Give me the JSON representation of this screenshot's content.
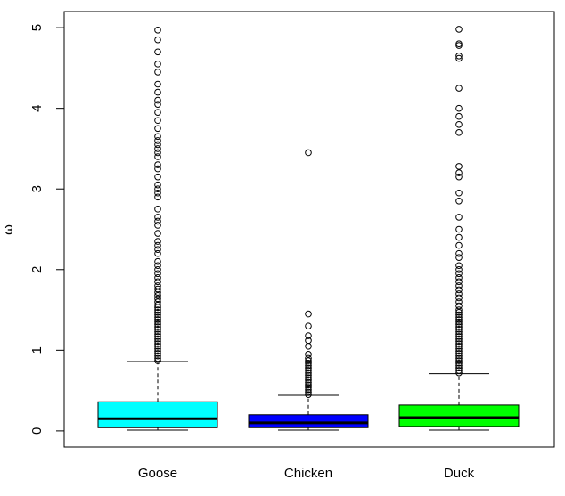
{
  "chart_data": {
    "type": "boxplot",
    "title": "",
    "xlabel": "",
    "ylabel": "ω",
    "ylim": [
      -0.2,
      5.2
    ],
    "yticks": [
      0,
      1,
      2,
      3,
      4,
      5
    ],
    "grid": false,
    "categories": [
      "Goose",
      "Chicken",
      "Duck"
    ],
    "series": [
      {
        "name": "Goose",
        "color": "#00FFFF",
        "whisker_low": 0.01,
        "q1": 0.04,
        "median": 0.15,
        "q3": 0.36,
        "whisker_high": 0.86,
        "outliers": [
          0.87,
          0.9,
          0.93,
          0.96,
          0.99,
          1.02,
          1.05,
          1.08,
          1.11,
          1.14,
          1.17,
          1.2,
          1.23,
          1.26,
          1.29,
          1.32,
          1.35,
          1.38,
          1.41,
          1.44,
          1.47,
          1.5,
          1.53,
          1.56,
          1.6,
          1.64,
          1.68,
          1.72,
          1.76,
          1.8,
          1.85,
          1.9,
          1.95,
          2.0,
          2.05,
          2.1,
          2.2,
          2.25,
          2.3,
          2.35,
          2.45,
          2.55,
          2.6,
          2.65,
          2.75,
          2.9,
          2.95,
          3.0,
          3.05,
          3.15,
          3.25,
          3.3,
          3.4,
          3.45,
          3.5,
          3.55,
          3.6,
          3.65,
          3.75,
          3.85,
          3.95,
          4.05,
          4.1,
          4.2,
          4.3,
          4.45,
          4.55,
          4.7,
          4.85,
          4.97
        ]
      },
      {
        "name": "Chicken",
        "color": "#0000FF",
        "whisker_low": 0.01,
        "q1": 0.04,
        "median": 0.1,
        "q3": 0.2,
        "whisker_high": 0.44,
        "outliers": [
          0.45,
          0.48,
          0.51,
          0.54,
          0.57,
          0.6,
          0.63,
          0.66,
          0.69,
          0.72,
          0.75,
          0.78,
          0.81,
          0.84,
          0.87,
          0.9,
          0.95,
          1.05,
          1.12,
          1.18,
          1.3,
          1.45,
          3.45
        ]
      },
      {
        "name": "Duck",
        "color": "#00FF00",
        "whisker_low": 0.01,
        "q1": 0.055,
        "median": 0.165,
        "q3": 0.32,
        "whisker_high": 0.71,
        "outliers": [
          0.72,
          0.75,
          0.78,
          0.81,
          0.84,
          0.87,
          0.9,
          0.93,
          0.96,
          0.99,
          1.02,
          1.05,
          1.08,
          1.11,
          1.14,
          1.17,
          1.2,
          1.23,
          1.26,
          1.29,
          1.32,
          1.35,
          1.38,
          1.41,
          1.44,
          1.47,
          1.5,
          1.55,
          1.6,
          1.65,
          1.7,
          1.75,
          1.8,
          1.85,
          1.9,
          1.95,
          2.0,
          2.05,
          2.15,
          2.2,
          2.3,
          2.4,
          2.5,
          2.65,
          2.85,
          2.95,
          3.15,
          3.2,
          3.28,
          3.7,
          3.8,
          3.9,
          4.0,
          4.25,
          4.62,
          4.65,
          4.78,
          4.8,
          4.98
        ]
      }
    ]
  }
}
